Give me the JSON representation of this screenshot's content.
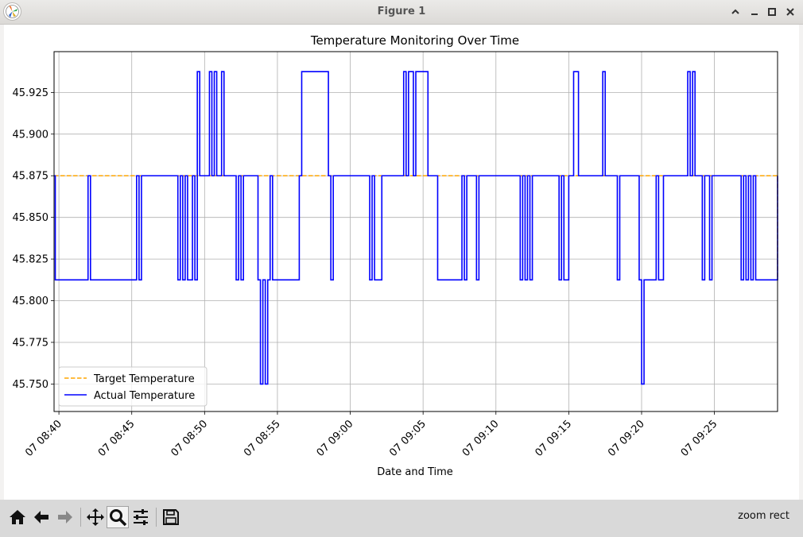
{
  "window": {
    "title": "Figure 1"
  },
  "toolbar": {
    "status": "zoom rect"
  },
  "colors": {
    "target": "#ffa500",
    "actual": "#0000ff",
    "grid": "#b0b0b0"
  },
  "chart_data": {
    "type": "line",
    "title": "Temperature Monitoring Over Time",
    "xlabel": "Date and Time",
    "ylabel": "",
    "xlim": [
      "07 08:39:40",
      "07 09:29:20"
    ],
    "ylim": [
      45.7335,
      45.9495
    ],
    "yticks": [
      45.75,
      45.775,
      45.8,
      45.825,
      45.85,
      45.875,
      45.9,
      45.925
    ],
    "ytick_labels": [
      "45.750",
      "45.775",
      "45.800",
      "45.825",
      "45.850",
      "45.875",
      "45.900",
      "45.925"
    ],
    "xticks": [
      "07 08:40",
      "07 08:45",
      "07 08:50",
      "07 08:55",
      "07 09:00",
      "07 09:05",
      "07 09:10",
      "07 09:15",
      "07 09:20",
      "07 09:25"
    ],
    "grid": true,
    "legend": {
      "position": "lower-left",
      "entries": [
        "Target Temperature",
        "Actual Temperature"
      ]
    },
    "series": [
      {
        "name": "Target Temperature",
        "style": "dashed",
        "x": [
          "07 08:39:40",
          "07 09:29:20",
          "07 09:29:20"
        ],
        "y": [
          45.875,
          45.875,
          45.8125
        ]
      },
      {
        "name": "Actual Temperature",
        "style": "solid",
        "x": [
          "07 08:39:40",
          "07 08:39:45",
          "07 08:41:50",
          "07 08:42:00",
          "07 08:42:10",
          "07 08:45:20",
          "07 08:45:30",
          "07 08:45:40",
          "07 08:48:10",
          "07 08:48:20",
          "07 08:48:30",
          "07 08:48:40",
          "07 08:48:50",
          "07 08:49:10",
          "07 08:49:20",
          "07 08:49:30",
          "07 08:49:40",
          "07 08:50:20",
          "07 08:50:30",
          "07 08:50:40",
          "07 08:50:50",
          "07 08:51:10",
          "07 08:51:20",
          "07 08:52:10",
          "07 08:52:20",
          "07 08:52:30",
          "07 08:52:40",
          "07 08:53:40",
          "07 08:53:50",
          "07 08:54:00",
          "07 08:54:10",
          "07 08:54:20",
          "07 08:54:30",
          "07 08:54:40",
          "07 08:56:30",
          "07 08:56:40",
          "07 08:58:30",
          "07 08:58:40",
          "07 08:58:50",
          "07 09:01:20",
          "07 09:01:30",
          "07 09:01:40",
          "07 09:02:10",
          "07 09:02:20",
          "07 09:03:40",
          "07 09:03:50",
          "07 09:04:00",
          "07 09:04:20",
          "07 09:04:30",
          "07 09:05:20",
          "07 09:05:30",
          "07 09:06:00",
          "07 09:07:40",
          "07 09:07:50",
          "07 09:08:00",
          "07 09:08:40",
          "07 09:08:50",
          "07 09:11:40",
          "07 09:11:50",
          "07 09:12:00",
          "07 09:12:10",
          "07 09:12:20",
          "07 09:12:30",
          "07 09:14:20",
          "07 09:14:30",
          "07 09:14:40",
          "07 09:15:00",
          "07 09:15:10",
          "07 09:15:20",
          "07 09:15:40",
          "07 09:15:50",
          "07 09:17:20",
          "07 09:17:30",
          "07 09:18:20",
          "07 09:18:30",
          "07 09:19:50",
          "07 09:20:00",
          "07 09:20:10",
          "07 09:20:20",
          "07 09:20:40",
          "07 09:21:00",
          "07 09:21:10",
          "07 09:21:30",
          "07 09:21:40",
          "07 09:22:30",
          "07 09:23:10",
          "07 09:23:20",
          "07 09:23:30",
          "07 09:23:40",
          "07 09:24:10",
          "07 09:24:20",
          "07 09:24:40",
          "07 09:24:50",
          "07 09:26:50",
          "07 09:27:00",
          "07 09:27:10",
          "07 09:27:20",
          "07 09:27:30",
          "07 09:27:40",
          "07 09:27:50",
          "07 09:29:20"
        ],
        "y": [
          45.875,
          45.8125,
          45.8125,
          45.875,
          45.8125,
          45.875,
          45.8125,
          45.875,
          45.8125,
          45.875,
          45.8125,
          45.875,
          45.8125,
          45.875,
          45.8125,
          45.9375,
          45.875,
          45.9375,
          45.875,
          45.9375,
          45.875,
          45.9375,
          45.875,
          45.8125,
          45.875,
          45.8125,
          45.875,
          45.8125,
          45.75,
          45.8125,
          45.75,
          45.8125,
          45.875,
          45.8125,
          45.875,
          45.9375,
          45.875,
          45.8125,
          45.875,
          45.8125,
          45.875,
          45.8125,
          45.875,
          45.875,
          45.9375,
          45.875,
          45.9375,
          45.875,
          45.9375,
          45.875,
          45.875,
          45.8125,
          45.875,
          45.8125,
          45.875,
          45.8125,
          45.875,
          45.8125,
          45.875,
          45.8125,
          45.875,
          45.8125,
          45.875,
          45.8125,
          45.875,
          45.8125,
          45.875,
          45.875,
          45.9375,
          45.875,
          45.875,
          45.9375,
          45.875,
          45.8125,
          45.875,
          45.8125,
          45.75,
          45.8125,
          45.8125,
          45.8125,
          45.875,
          45.8125,
          45.875,
          45.875,
          45.875,
          45.9375,
          45.875,
          45.9375,
          45.875,
          45.8125,
          45.875,
          45.8125,
          45.875,
          45.8125,
          45.875,
          45.8125,
          45.875,
          45.8125,
          45.875,
          45.8125,
          45.875
        ]
      }
    ]
  }
}
